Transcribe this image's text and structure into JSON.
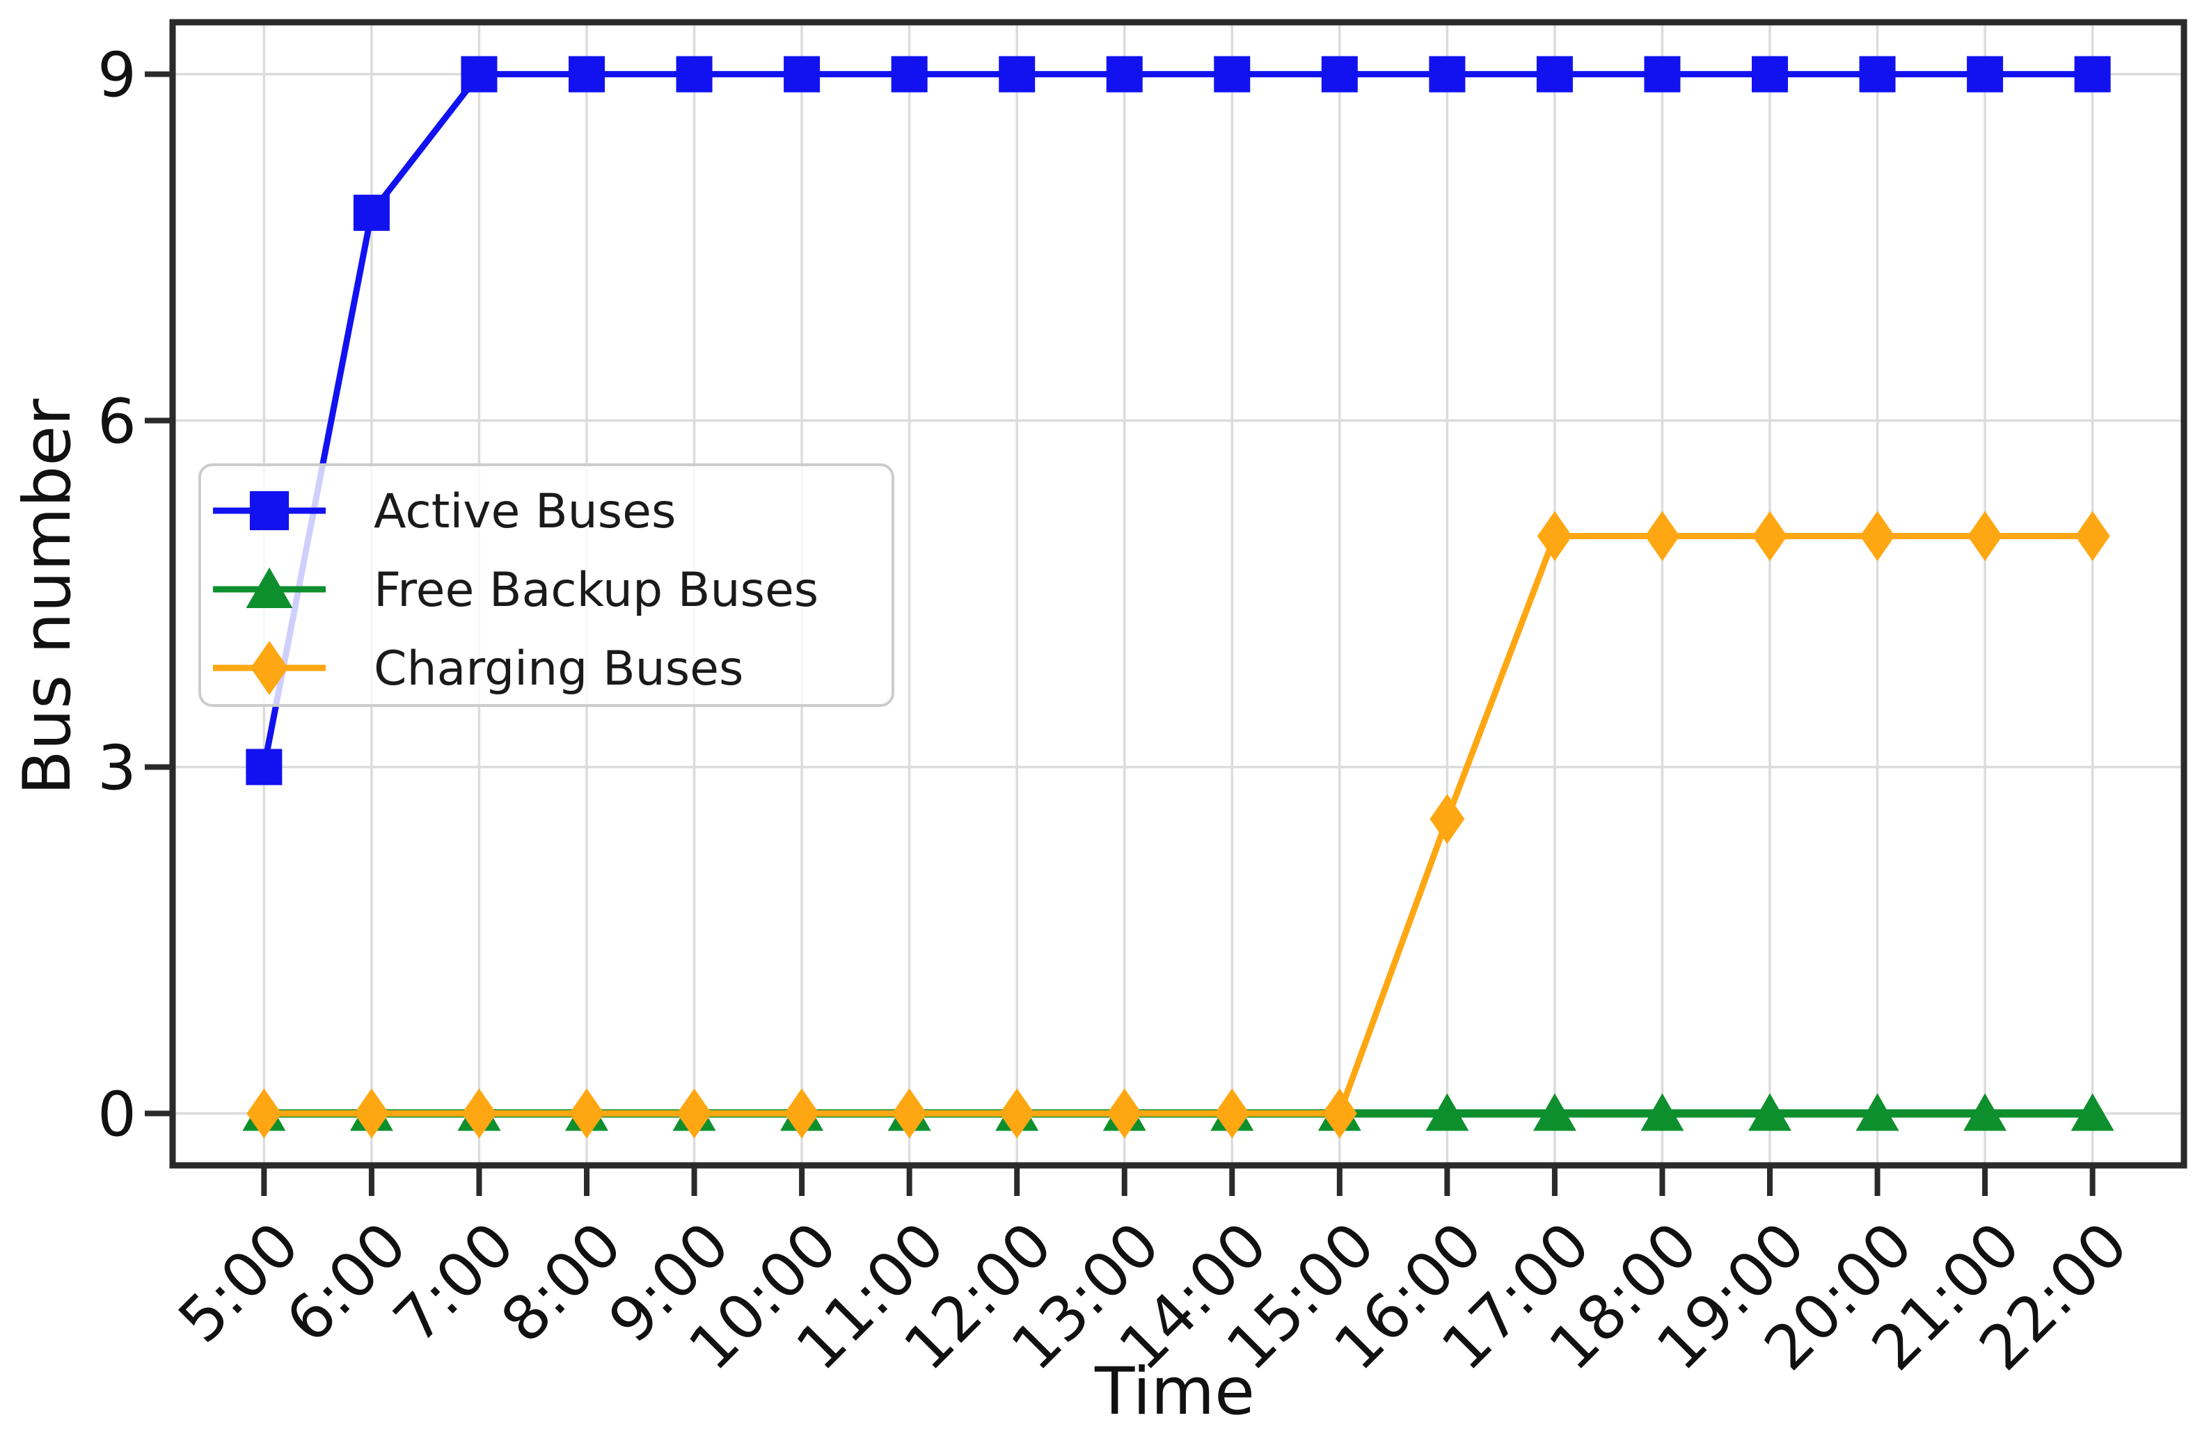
{
  "figure": {
    "background": "#ffffff"
  },
  "styles": {
    "grid_color": "#dcdcdc",
    "axis_color": "#2a2a2a",
    "tick_color": "#2a2a2a",
    "text_color": "#111111",
    "legend_background": "rgba(255,255,255,0.8)",
    "legend_border": "#cccccc"
  },
  "chart_data": {
    "type": "line",
    "title": "",
    "xlabel": "Time",
    "ylabel": "Bus number",
    "categories": [
      "5:00",
      "6:00",
      "7:00",
      "8:00",
      "9:00",
      "10:00",
      "11:00",
      "12:00",
      "13:00",
      "14:00",
      "15:00",
      "16:00",
      "17:00",
      "18:00",
      "19:00",
      "20:00",
      "21:00",
      "22:00"
    ],
    "yticks": [
      0,
      3,
      6,
      9
    ],
    "ylim": [
      -0.45,
      9.45
    ],
    "xlim_index": [
      -0.85,
      17.85
    ],
    "grid": true,
    "x_tick_rotation": 45,
    "legend_position": "upper-left-inside",
    "series": [
      {
        "name": "Active Buses",
        "color": "#1212f0",
        "marker": "square",
        "values": [
          3,
          7.8,
          9,
          9,
          9,
          9,
          9,
          9,
          9,
          9,
          9,
          9,
          9,
          9,
          9,
          9,
          9,
          9
        ]
      },
      {
        "name": "Free Backup Buses",
        "color": "#0e8f2e",
        "marker": "triangle",
        "values": [
          0,
          0,
          0,
          0,
          0,
          0,
          0,
          0,
          0,
          0,
          0,
          0,
          0,
          0,
          0,
          0,
          0,
          0
        ]
      },
      {
        "name": "Charging Buses",
        "color": "#ffa713",
        "marker": "diamond",
        "values": [
          0,
          0,
          0,
          0,
          0,
          0,
          0,
          0,
          0,
          0,
          0,
          2.55,
          5,
          5,
          5,
          5,
          5,
          5
        ]
      }
    ]
  }
}
